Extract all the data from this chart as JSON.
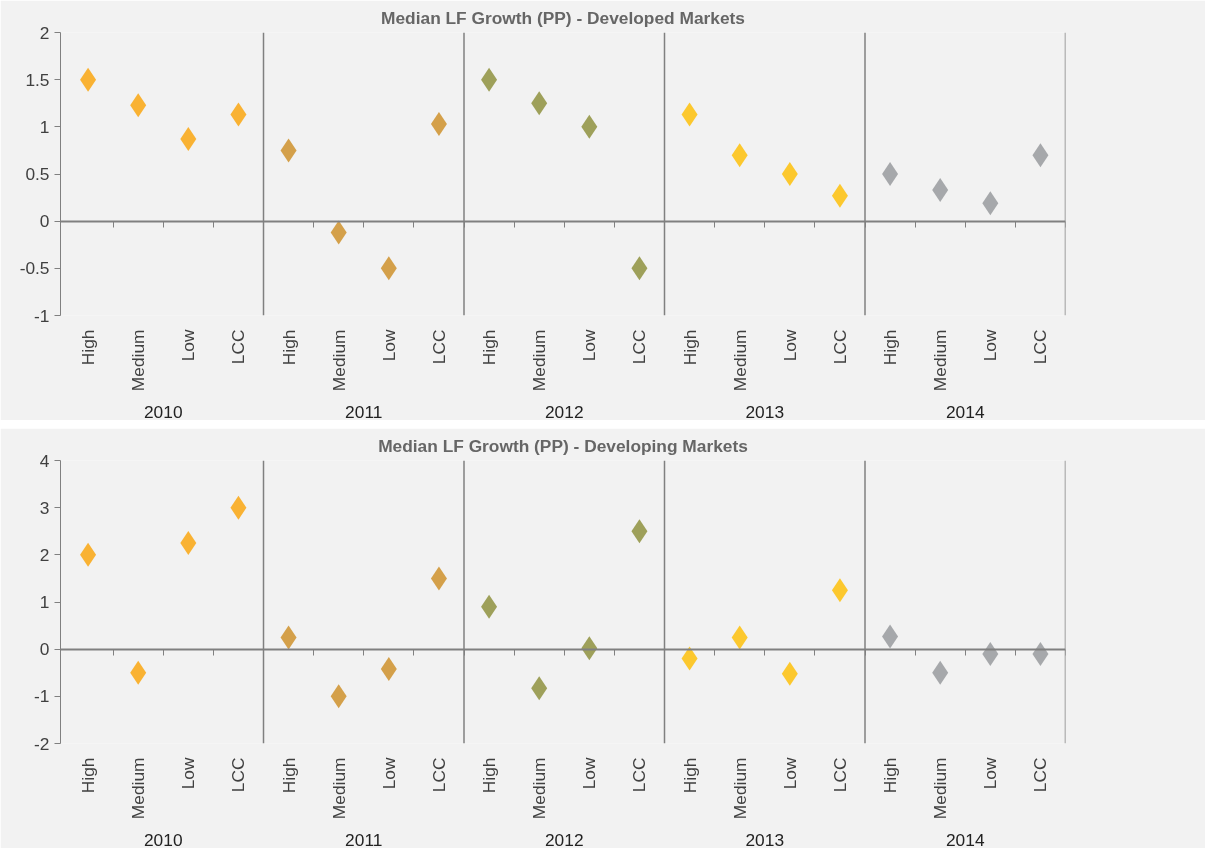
{
  "chart_data": [
    {
      "type": "scatter",
      "title": "Median LF Growth (PP) - Developed Markets",
      "marker": "diamond",
      "grid": false,
      "annotations": [
        "2010",
        "2011",
        "2012",
        "2013",
        "2014"
      ],
      "categories": [
        "High",
        "Medium",
        "Low",
        "LCC",
        "High",
        "Medium",
        "Low",
        "LCC",
        "High",
        "Medium",
        "Low",
        "LCC",
        "High",
        "Medium",
        "Low",
        "LCC",
        "High",
        "Medium",
        "Low",
        "LCC"
      ],
      "ylim": [
        -1,
        2
      ],
      "yticks": [
        -1,
        -0.5,
        0,
        0.5,
        1,
        1.5,
        2
      ],
      "series": [
        {
          "color": "#f9b233",
          "values": [
            1.5,
            1.23,
            0.87,
            1.13,
            null,
            null,
            null,
            null,
            null,
            null,
            null,
            null,
            null,
            null,
            null,
            null,
            null,
            null,
            null,
            null
          ]
        },
        {
          "color": "#d4a04a",
          "values": [
            null,
            null,
            null,
            null,
            0.75,
            -0.12,
            -0.5,
            1.03,
            null,
            null,
            null,
            null,
            null,
            null,
            null,
            null,
            null,
            null,
            null,
            null
          ]
        },
        {
          "color": "#9ea05a",
          "values": [
            null,
            null,
            null,
            null,
            null,
            null,
            null,
            null,
            1.5,
            1.25,
            1.0,
            -0.5,
            null,
            null,
            null,
            null,
            null,
            null,
            null,
            null
          ]
        },
        {
          "color": "#fcc82e",
          "values": [
            null,
            null,
            null,
            null,
            null,
            null,
            null,
            null,
            null,
            null,
            null,
            null,
            1.13,
            0.7,
            0.5,
            0.27,
            null,
            null,
            null,
            null
          ]
        },
        {
          "color": "#a6a8ab",
          "values": [
            null,
            null,
            null,
            null,
            null,
            null,
            null,
            null,
            null,
            null,
            null,
            null,
            null,
            null,
            null,
            null,
            0.5,
            0.33,
            0.19,
            0.7
          ]
        }
      ]
    },
    {
      "type": "scatter",
      "title": "Median LF Growth (PP) - Developing Markets",
      "marker": "diamond",
      "grid": false,
      "annotations": [
        "2010",
        "2011",
        "2012",
        "2013",
        "2014"
      ],
      "categories": [
        "High",
        "Medium",
        "Low",
        "LCC",
        "High",
        "Medium",
        "Low",
        "LCC",
        "High",
        "Medium",
        "Low",
        "LCC",
        "High",
        "Medium",
        "Low",
        "LCC",
        "High",
        "Medium",
        "Low",
        "LCC"
      ],
      "ylim": [
        -2,
        4
      ],
      "yticks": [
        -2,
        -1,
        0,
        1,
        2,
        3,
        4
      ],
      "series": [
        {
          "color": "#f9b233",
          "values": [
            2.0,
            -0.5,
            2.25,
            3.0,
            null,
            null,
            null,
            null,
            null,
            null,
            null,
            null,
            null,
            null,
            null,
            null,
            null,
            null,
            null,
            null
          ]
        },
        {
          "color": "#d4a04a",
          "values": [
            null,
            null,
            null,
            null,
            0.25,
            -1.0,
            -0.42,
            1.5,
            null,
            null,
            null,
            null,
            null,
            null,
            null,
            null,
            null,
            null,
            null,
            null
          ]
        },
        {
          "color": "#9ea05a",
          "values": [
            null,
            null,
            null,
            null,
            null,
            null,
            null,
            null,
            0.9,
            -0.83,
            0.02,
            2.5,
            null,
            null,
            null,
            null,
            null,
            null,
            null,
            null
          ]
        },
        {
          "color": "#fcc82e",
          "values": [
            null,
            null,
            null,
            null,
            null,
            null,
            null,
            null,
            null,
            null,
            null,
            null,
            -0.2,
            0.25,
            -0.52,
            1.25,
            null,
            null,
            null,
            null
          ]
        },
        {
          "color": "#a6a8ab",
          "values": [
            null,
            null,
            null,
            null,
            null,
            null,
            null,
            null,
            null,
            null,
            null,
            null,
            null,
            null,
            null,
            null,
            0.27,
            -0.5,
            -0.1,
            -0.1
          ]
        }
      ]
    }
  ]
}
